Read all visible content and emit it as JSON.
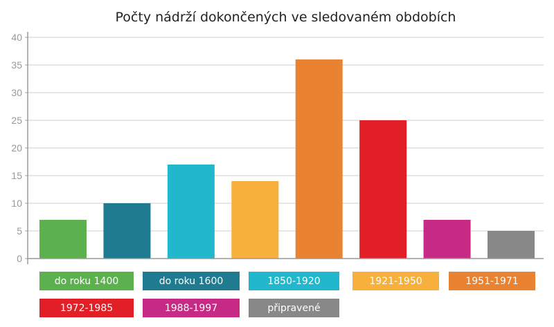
{
  "chart_data": {
    "type": "bar",
    "title": "Počty nádrží dokončených ve sledovaném obdobích",
    "categories": [
      "do roku 1400",
      "do roku 1600",
      "1850-1920",
      "1921-1950",
      "1951-1971",
      "1972-1985",
      "1988-1997",
      "připravené"
    ],
    "values": [
      7,
      10,
      17,
      14,
      36,
      25,
      7,
      5
    ],
    "colors": [
      "#5cb14e",
      "#1f7c90",
      "#21b7cc",
      "#f7b03c",
      "#e98231",
      "#e21f26",
      "#c62a84",
      "#888888"
    ],
    "ylim": [
      0,
      40
    ],
    "yticks": [
      0,
      5,
      10,
      15,
      20,
      25,
      30,
      35,
      40
    ],
    "xlabel": "",
    "ylabel": "",
    "grid": true,
    "legend": "bottom"
  }
}
